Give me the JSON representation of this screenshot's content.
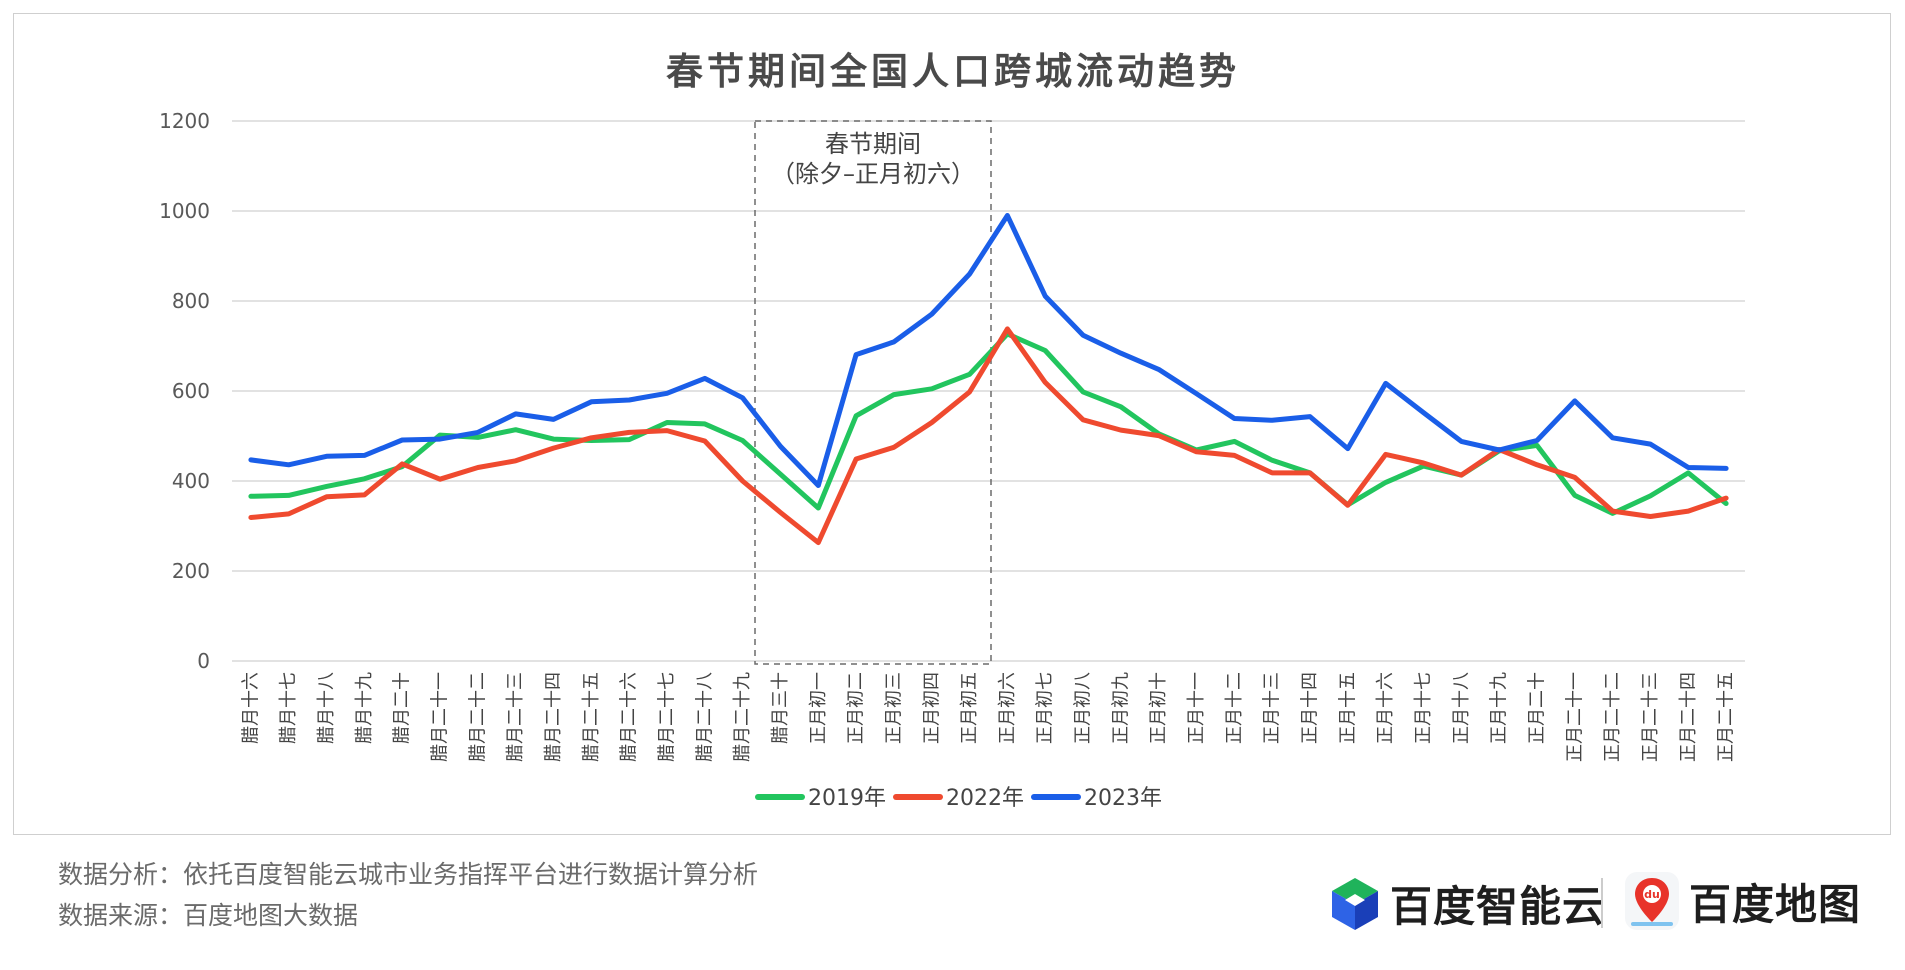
{
  "chart_data": {
    "type": "line",
    "title": "春节期间全国人口跨城流动趋势",
    "ylim": [
      0,
      1200
    ],
    "yticks": [
      0,
      200,
      400,
      600,
      800,
      1000,
      1200
    ],
    "grid": true,
    "legend_position": "bottom-center",
    "categories": [
      "腊月十六",
      "腊月十七",
      "腊月十八",
      "腊月十九",
      "腊月二十",
      "腊月二十一",
      "腊月二十二",
      "腊月二十三",
      "腊月二十四",
      "腊月二十五",
      "腊月二十六",
      "腊月二十七",
      "腊月二十八",
      "腊月二十九",
      "腊月三十",
      "正月初一",
      "正月初二",
      "正月初三",
      "正月初四",
      "正月初五",
      "正月初六",
      "正月初七",
      "正月初八",
      "正月初九",
      "正月初十",
      "正月十一",
      "正月十二",
      "正月十三",
      "正月十四",
      "正月十五",
      "正月十六",
      "正月十七",
      "正月十八",
      "正月十九",
      "正月二十",
      "正月二十一",
      "正月二十二",
      "正月二十三",
      "正月二十四",
      "正月二十五"
    ],
    "series": [
      {
        "name": "2019年",
        "color": "#22c55e",
        "values": [
          366,
          368,
          388,
          405,
          432,
          502,
          497,
          514,
          493,
          490,
          492,
          530,
          527,
          490,
          415,
          340,
          545,
          592,
          605,
          637,
          727,
          690,
          598,
          565,
          505,
          469,
          488,
          446,
          418,
          347,
          397,
          433,
          413,
          467,
          479,
          368,
          328,
          367,
          418,
          350
        ]
      },
      {
        "name": "2022年",
        "color": "#ef4a2f",
        "values": [
          319,
          327,
          365,
          369,
          438,
          404,
          430,
          445,
          473,
          496,
          508,
          512,
          489,
          400,
          330,
          263,
          449,
          475,
          530,
          598,
          738,
          619,
          536,
          513,
          501,
          465,
          457,
          418,
          418,
          346,
          459,
          440,
          413,
          470,
          436,
          408,
          333,
          321,
          333,
          362
        ]
      },
      {
        "name": "2023年",
        "color": "#1a5ee8",
        "values": [
          447,
          436,
          455,
          457,
          491,
          493,
          508,
          549,
          537,
          576,
          580,
          595,
          628,
          585,
          477,
          390,
          681,
          709,
          771,
          860,
          990,
          811,
          724,
          684,
          648,
          594,
          539,
          535,
          543,
          472,
          617,
          552,
          488,
          469,
          490,
          578,
          496,
          482,
          430,
          428
        ]
      }
    ],
    "annotation": {
      "line1": "春节期间",
      "line2": "（除夕–正月初六）",
      "from": "腊月三十",
      "to": "正月初六"
    }
  },
  "footer": {
    "analysis": "数据分析：依托百度智能云城市业务指挥平台进行数据计算分析",
    "source": "数据来源：百度地图大数据"
  },
  "brands": {
    "cloud": "百度智能云",
    "map": "百度地图",
    "map_badge": "du"
  },
  "colors": {
    "grid": "#d9d9d9",
    "axis_text": "#595959",
    "title": "#4a4a4a",
    "annotation_box": "#6b6b6b",
    "map_pin": "#e8332a",
    "cloud_green": "#1fb35b",
    "cloud_blue": "#2e63e6"
  }
}
